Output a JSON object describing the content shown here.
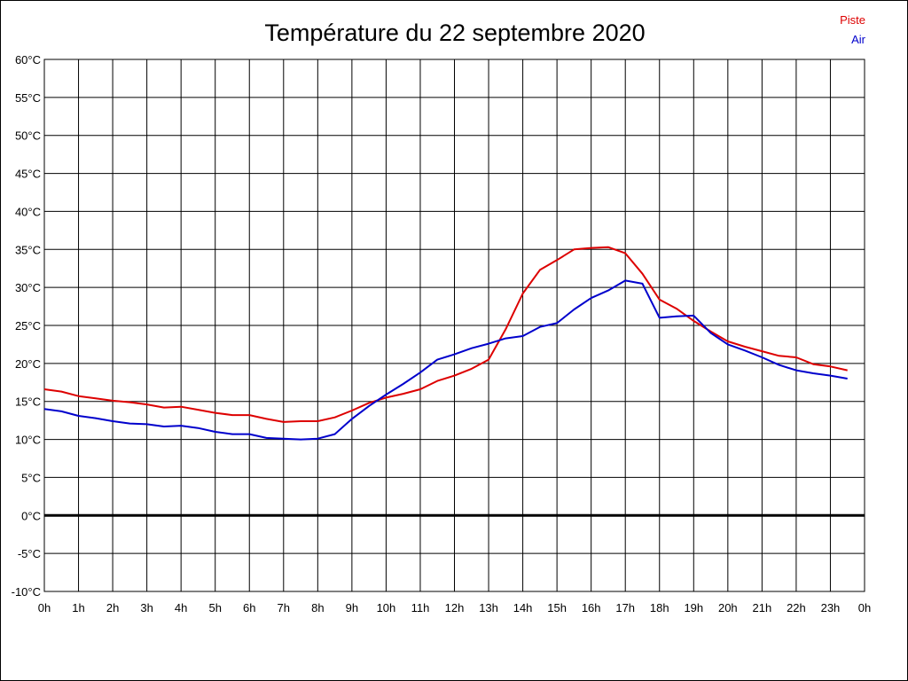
{
  "chart_data": {
    "type": "line",
    "title": "Température du 22 septembre 2020",
    "xlabel": "",
    "ylabel": "",
    "x_ticks": [
      "0h",
      "1h",
      "2h",
      "3h",
      "4h",
      "5h",
      "6h",
      "7h",
      "8h",
      "9h",
      "10h",
      "11h",
      "12h",
      "13h",
      "14h",
      "15h",
      "16h",
      "17h",
      "18h",
      "19h",
      "20h",
      "21h",
      "22h",
      "23h",
      "0h"
    ],
    "y_ticks": [
      "60°C",
      "55°C",
      "50°C",
      "45°C",
      "40°C",
      "35°C",
      "30°C",
      "25°C",
      "20°C",
      "15°C",
      "10°C",
      "5°C",
      "0°C",
      "-5°C",
      "-10°C"
    ],
    "xlim": [
      0,
      24
    ],
    "ylim": [
      -10,
      60
    ],
    "grid": true,
    "zero_line": true,
    "legend_position": "top-right",
    "series": [
      {
        "name": "Piste",
        "color": "#dd0000",
        "x": [
          0,
          0.5,
          1,
          1.5,
          2,
          2.5,
          3,
          3.5,
          4,
          4.5,
          5,
          5.5,
          6,
          6.5,
          7,
          7.5,
          8,
          8.5,
          9,
          9.5,
          10,
          10.5,
          11,
          11.5,
          12,
          12.5,
          13,
          13.5,
          14,
          14.5,
          15,
          15.5,
          16,
          16.5,
          17,
          17.5,
          18,
          18.5,
          19,
          19.5,
          20,
          20.5,
          21,
          21.5,
          22,
          22.5,
          23,
          23.5
        ],
        "y": [
          16.6,
          16.3,
          15.7,
          15.4,
          15.1,
          14.9,
          14.6,
          14.2,
          14.3,
          13.9,
          13.5,
          13.2,
          13.2,
          12.7,
          12.3,
          12.4,
          12.4,
          12.9,
          13.8,
          14.8,
          15.5,
          16.0,
          16.6,
          17.7,
          18.4,
          19.3,
          20.5,
          24.5,
          29.2,
          32.3,
          33.6,
          35.0,
          35.2,
          35.3,
          34.5,
          31.8,
          28.4,
          27.2,
          25.6,
          24.2,
          22.9,
          22.2,
          21.6,
          21.0,
          20.8,
          19.9,
          19.6,
          19.1
        ]
      },
      {
        "name": "Air",
        "color": "#0000cc",
        "x": [
          0,
          0.5,
          1,
          1.5,
          2,
          2.5,
          3,
          3.5,
          4,
          4.5,
          5,
          5.5,
          6,
          6.5,
          7,
          7.5,
          8,
          8.5,
          9,
          9.5,
          10,
          10.5,
          11,
          11.5,
          12,
          12.5,
          13,
          13.5,
          14,
          14.5,
          15,
          15.5,
          16,
          16.5,
          17,
          17.5,
          18,
          18.5,
          19,
          19.5,
          20,
          20.5,
          21,
          21.5,
          22,
          22.5,
          23,
          23.5
        ],
        "y": [
          14.0,
          13.7,
          13.1,
          12.8,
          12.4,
          12.1,
          12.0,
          11.7,
          11.8,
          11.5,
          11.0,
          10.7,
          10.7,
          10.2,
          10.1,
          10.0,
          10.1,
          10.7,
          12.7,
          14.4,
          15.9,
          17.3,
          18.8,
          20.5,
          21.2,
          22.0,
          22.6,
          23.3,
          23.6,
          24.8,
          25.3,
          27.1,
          28.6,
          29.6,
          30.9,
          30.5,
          26.0,
          26.2,
          26.3,
          24.0,
          22.5,
          21.7,
          20.8,
          19.8,
          19.1,
          18.7,
          18.4,
          18.0
        ]
      }
    ]
  }
}
